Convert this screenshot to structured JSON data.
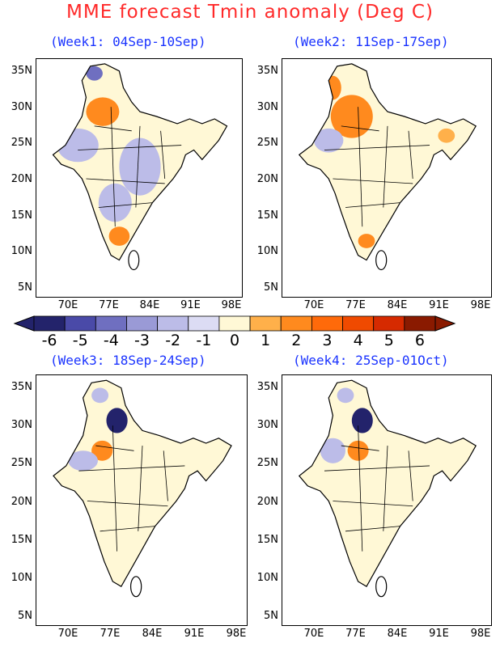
{
  "title": "MME forecast Tmin anomaly (Deg C)",
  "panels": [
    {
      "title": "(Week1: 04Sep-10Sep)"
    },
    {
      "title": "(Week2: 11Sep-17Sep)"
    },
    {
      "title": "(Week3: 18Sep-24Sep)"
    },
    {
      "title": "(Week4: 25Sep-01Oct)"
    }
  ],
  "lat_labels": [
    "35N",
    "30N",
    "25N",
    "20N",
    "15N",
    "10N",
    "5N"
  ],
  "lon_labels": [
    "70E",
    "77E",
    "84E",
    "91E",
    "98E"
  ],
  "colorbar": {
    "labels": [
      "-6",
      "-5",
      "-4",
      "-3",
      "-2",
      "-1",
      "0",
      "1",
      "2",
      "3",
      "4",
      "5",
      "6"
    ],
    "colors": [
      "#23236b",
      "#4a4aa8",
      "#6f6fc0",
      "#9a9ad6",
      "#bcbce8",
      "#dcdcf4",
      "#fff8d6",
      "#ffb04a",
      "#ff8a1e",
      "#ff6a0a",
      "#f04a00",
      "#d62a00",
      "#8a1a00"
    ]
  }
}
